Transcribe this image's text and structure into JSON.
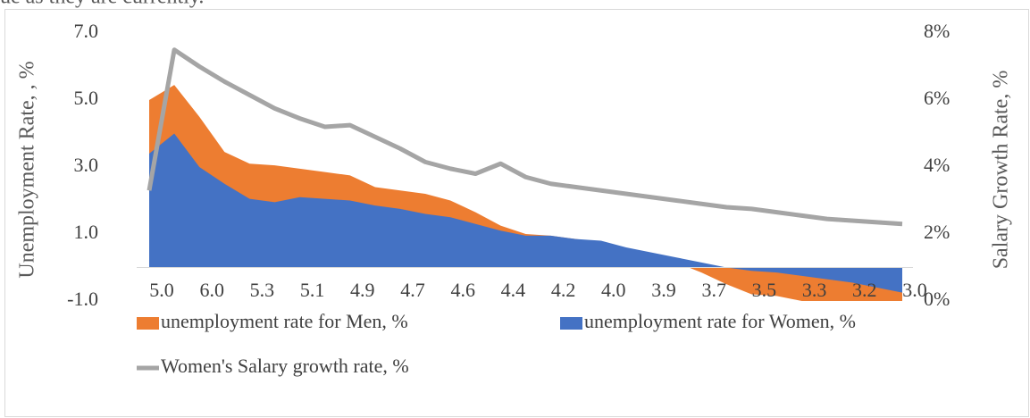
{
  "header_text": "ue as they are currently.",
  "chart_data": {
    "type": "area",
    "y_label": "Unemployment Rate, , %",
    "y2_label": "Salary Growth Rate, %",
    "categories": [
      "5.0",
      null,
      "6.0",
      null,
      "5.3",
      null,
      "5.1",
      null,
      "4.9",
      null,
      "4.7",
      null,
      "4.6",
      null,
      "4.4",
      null,
      "4.2",
      null,
      "4.0",
      null,
      "3.9",
      null,
      "3.7",
      null,
      "3.5",
      null,
      "3.3",
      null,
      "3.2",
      null,
      "3.0"
    ],
    "series": [
      {
        "name": "unemployment rate for Men, %",
        "type": "area",
        "color": "#ed7d31",
        "values": [
          5.0,
          5.45,
          4.5,
          3.45,
          3.1,
          3.05,
          2.95,
          2.85,
          2.75,
          2.4,
          2.3,
          2.2,
          2.0,
          1.65,
          1.25,
          1.0,
          0.95,
          0.85,
          0.75,
          0.55,
          0.35,
          0.15,
          -0.15,
          -0.5,
          -0.8,
          -0.85,
          -1.0,
          -1.0,
          -1.0,
          -1.0,
          -1.0
        ]
      },
      {
        "name": "unemployment rate for Women, %",
        "type": "area",
        "color": "#4472c4",
        "values": [
          3.4,
          4.0,
          3.0,
          2.5,
          2.05,
          1.95,
          2.1,
          2.05,
          2.0,
          1.85,
          1.75,
          1.6,
          1.5,
          1.3,
          1.1,
          0.95,
          0.95,
          0.85,
          0.8,
          0.6,
          0.45,
          0.3,
          0.15,
          0.0,
          -0.1,
          -0.15,
          -0.25,
          -0.35,
          -0.45,
          -0.6,
          -0.75
        ]
      },
      {
        "name": "Women's Salary growth rate, %",
        "type": "line",
        "axis": "y2",
        "color": "#a5a5a5",
        "values": [
          3.3,
          7.5,
          7.0,
          6.55,
          6.15,
          5.75,
          5.45,
          5.2,
          5.25,
          4.9,
          4.55,
          4.15,
          3.95,
          3.8,
          4.1,
          3.7,
          3.5,
          3.4,
          3.3,
          3.2,
          3.1,
          3.0,
          2.9,
          2.8,
          2.75,
          2.65,
          2.55,
          2.45,
          2.4,
          2.35,
          2.3
        ]
      }
    ],
    "ylim": [
      -1.0,
      7.0
    ],
    "yticks": [
      {
        "value": -1,
        "label": "-1.0"
      },
      {
        "value": 1,
        "label": "1.0"
      },
      {
        "value": 3,
        "label": "3.0"
      },
      {
        "value": 5,
        "label": "5.0"
      },
      {
        "value": 7,
        "label": "7.0"
      }
    ],
    "y2lim": [
      0,
      8
    ],
    "y2ticks": [
      {
        "value": 0,
        "label": "0%"
      },
      {
        "value": 2,
        "label": "2%"
      },
      {
        "value": 4,
        "label": "4%"
      },
      {
        "value": 6,
        "label": "6%"
      },
      {
        "value": 8,
        "label": "8%"
      }
    ]
  }
}
